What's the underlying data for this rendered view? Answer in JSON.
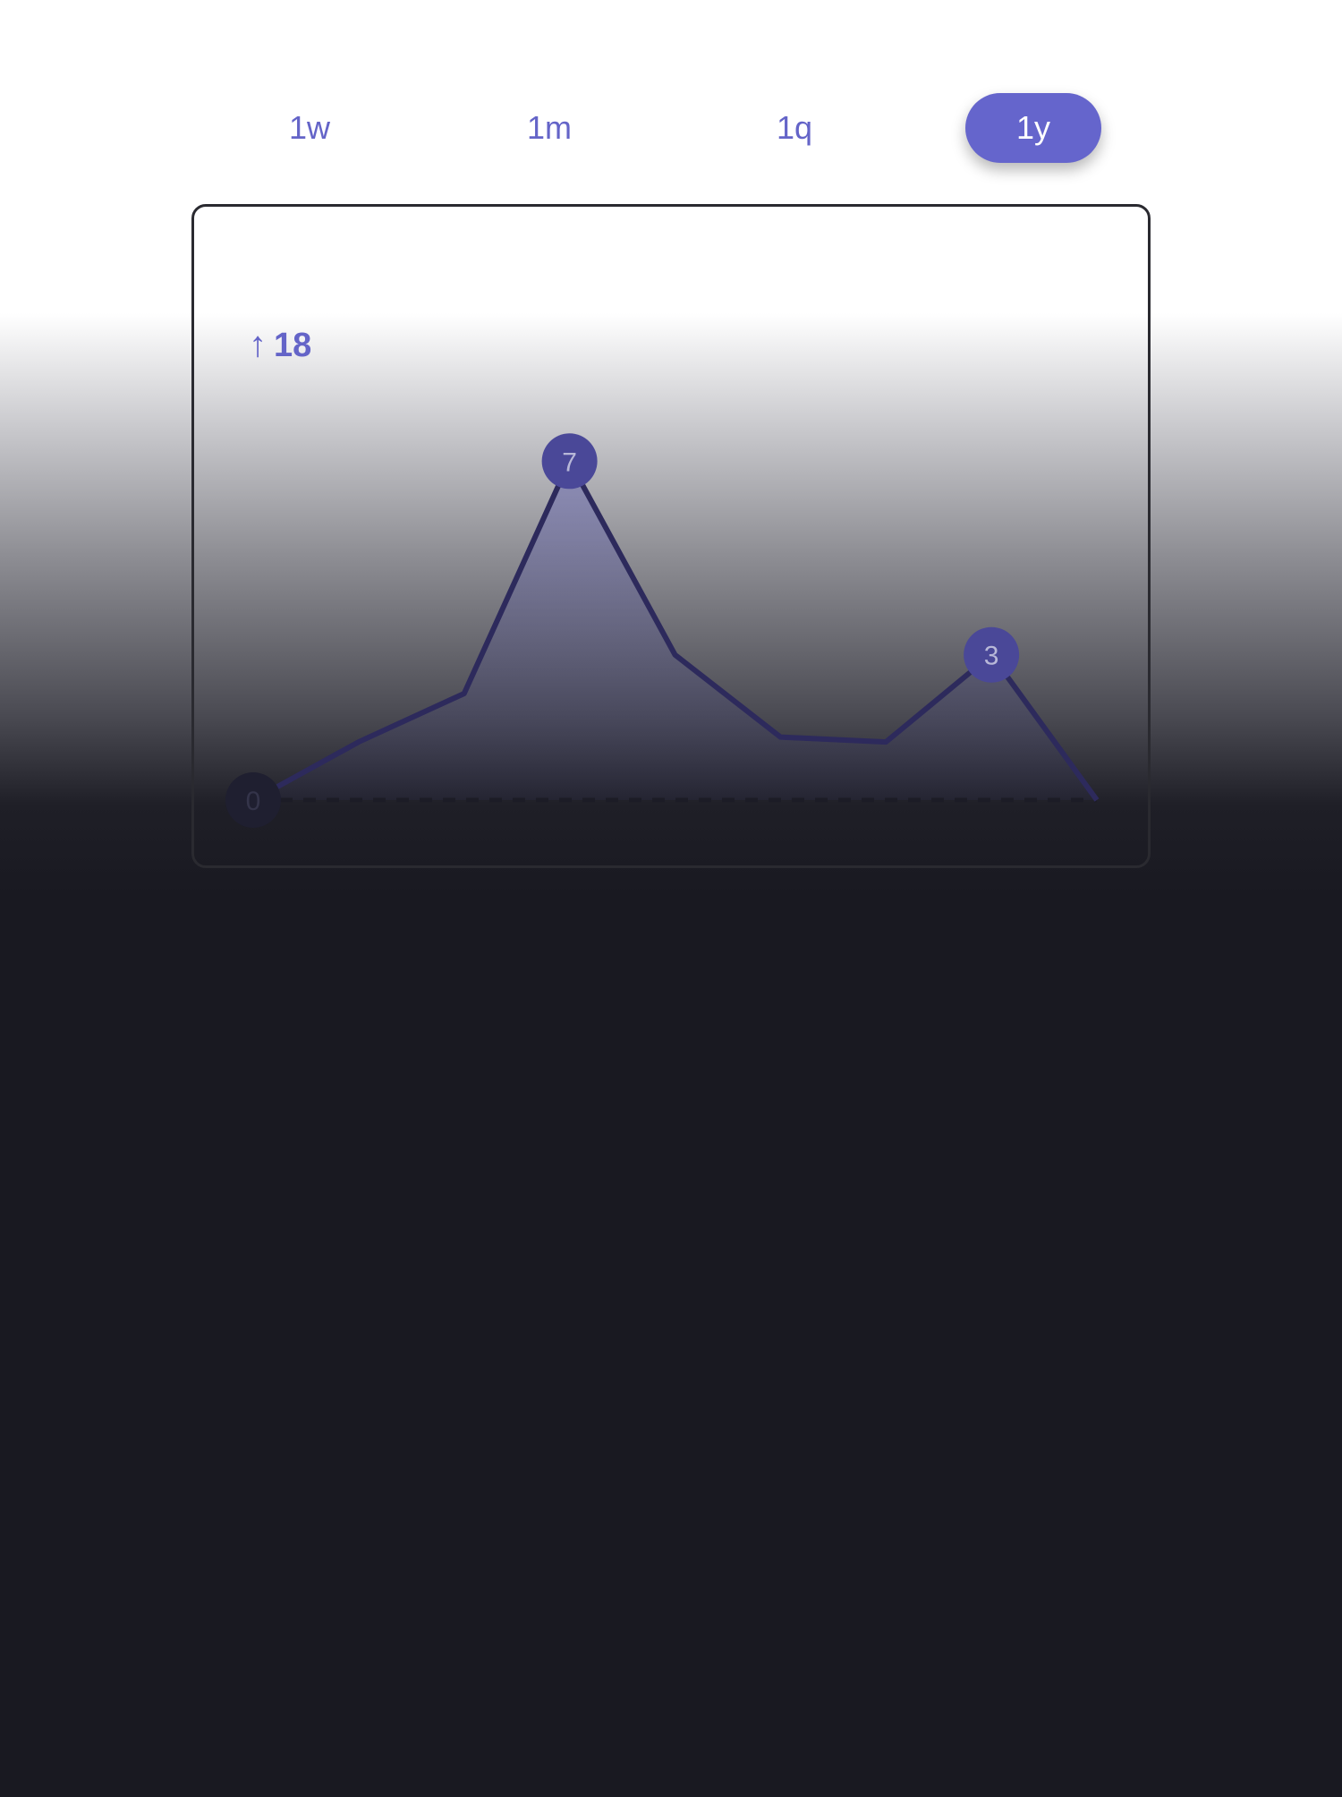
{
  "range_tabs": [
    {
      "label": "1w",
      "active": false
    },
    {
      "label": "1m",
      "active": false
    },
    {
      "label": "1q",
      "active": false
    },
    {
      "label": "1y",
      "active": true
    }
  ],
  "summary": {
    "arrow_icon": "arrow-up-icon",
    "change_value": "18"
  },
  "colors": {
    "accent": "#6565cc",
    "line": "#2d2a5c",
    "marker_high": "#4a4898",
    "marker_low": "#1f1f30"
  },
  "chart_data": {
    "type": "area",
    "points": [
      0,
      1.2,
      2.2,
      7,
      3,
      1.3,
      1.2,
      3,
      0
    ],
    "labeled_points": [
      {
        "index": 0,
        "label": "0"
      },
      {
        "index": 3,
        "label": "7"
      },
      {
        "index": 7,
        "label": "3"
      }
    ],
    "baseline": 0,
    "baseline_style": "dashed"
  }
}
